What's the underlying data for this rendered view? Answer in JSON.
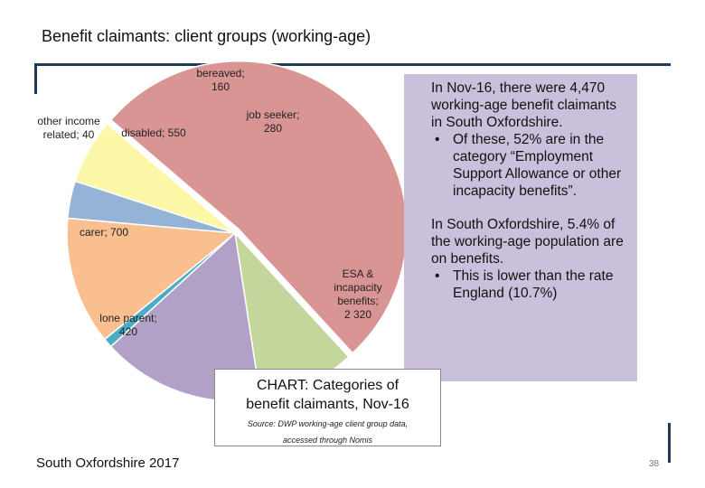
{
  "title": "Benefit claimants: client groups (working-age)",
  "chart_data": {
    "type": "pie",
    "categories": [
      "job seeker",
      "ESA & incapacity benefits",
      "lone parent",
      "carer",
      "other income related",
      "disabled",
      "bereaved"
    ],
    "values": [
      280,
      2320,
      420,
      700,
      40,
      550,
      160
    ],
    "labels": [
      [
        "job seeker;",
        "280"
      ],
      [
        "ESA &",
        "incapacity",
        "benefits;",
        "2 320"
      ],
      [
        "lone parent;",
        "420"
      ],
      [
        "carer; 700"
      ],
      [
        "other income",
        "related; 40"
      ],
      [
        "disabled; 550"
      ],
      [
        "bereaved;",
        "160"
      ]
    ],
    "colors": [
      "#fbf7a6",
      "#d99594",
      "#c3d69b",
      "#b2a1c7",
      "#4bacc6",
      "#f9bf8f",
      "#95b3d7"
    ]
  },
  "notes": {
    "para1": "In Nov-16, there were 4,470 working-age benefit claimants in South Oxfordshire.",
    "bullet1": "Of these, 52% are in the category “Employment Support Allowance or other incapacity benefits”.",
    "para2": "In South Oxfordshire, 5.4% of the working-age population are on benefits.",
    "bullet2": "This is lower than the rate England (10.7%)"
  },
  "caption": {
    "title_line1": "CHART: Categories of",
    "title_line2": "benefit claimants, Nov-16",
    "source_line1": "Source: DWP working-age client group data,",
    "source_line2": "accessed through Nomis"
  },
  "footer": "South Oxfordshire 2017",
  "page_number": "38"
}
